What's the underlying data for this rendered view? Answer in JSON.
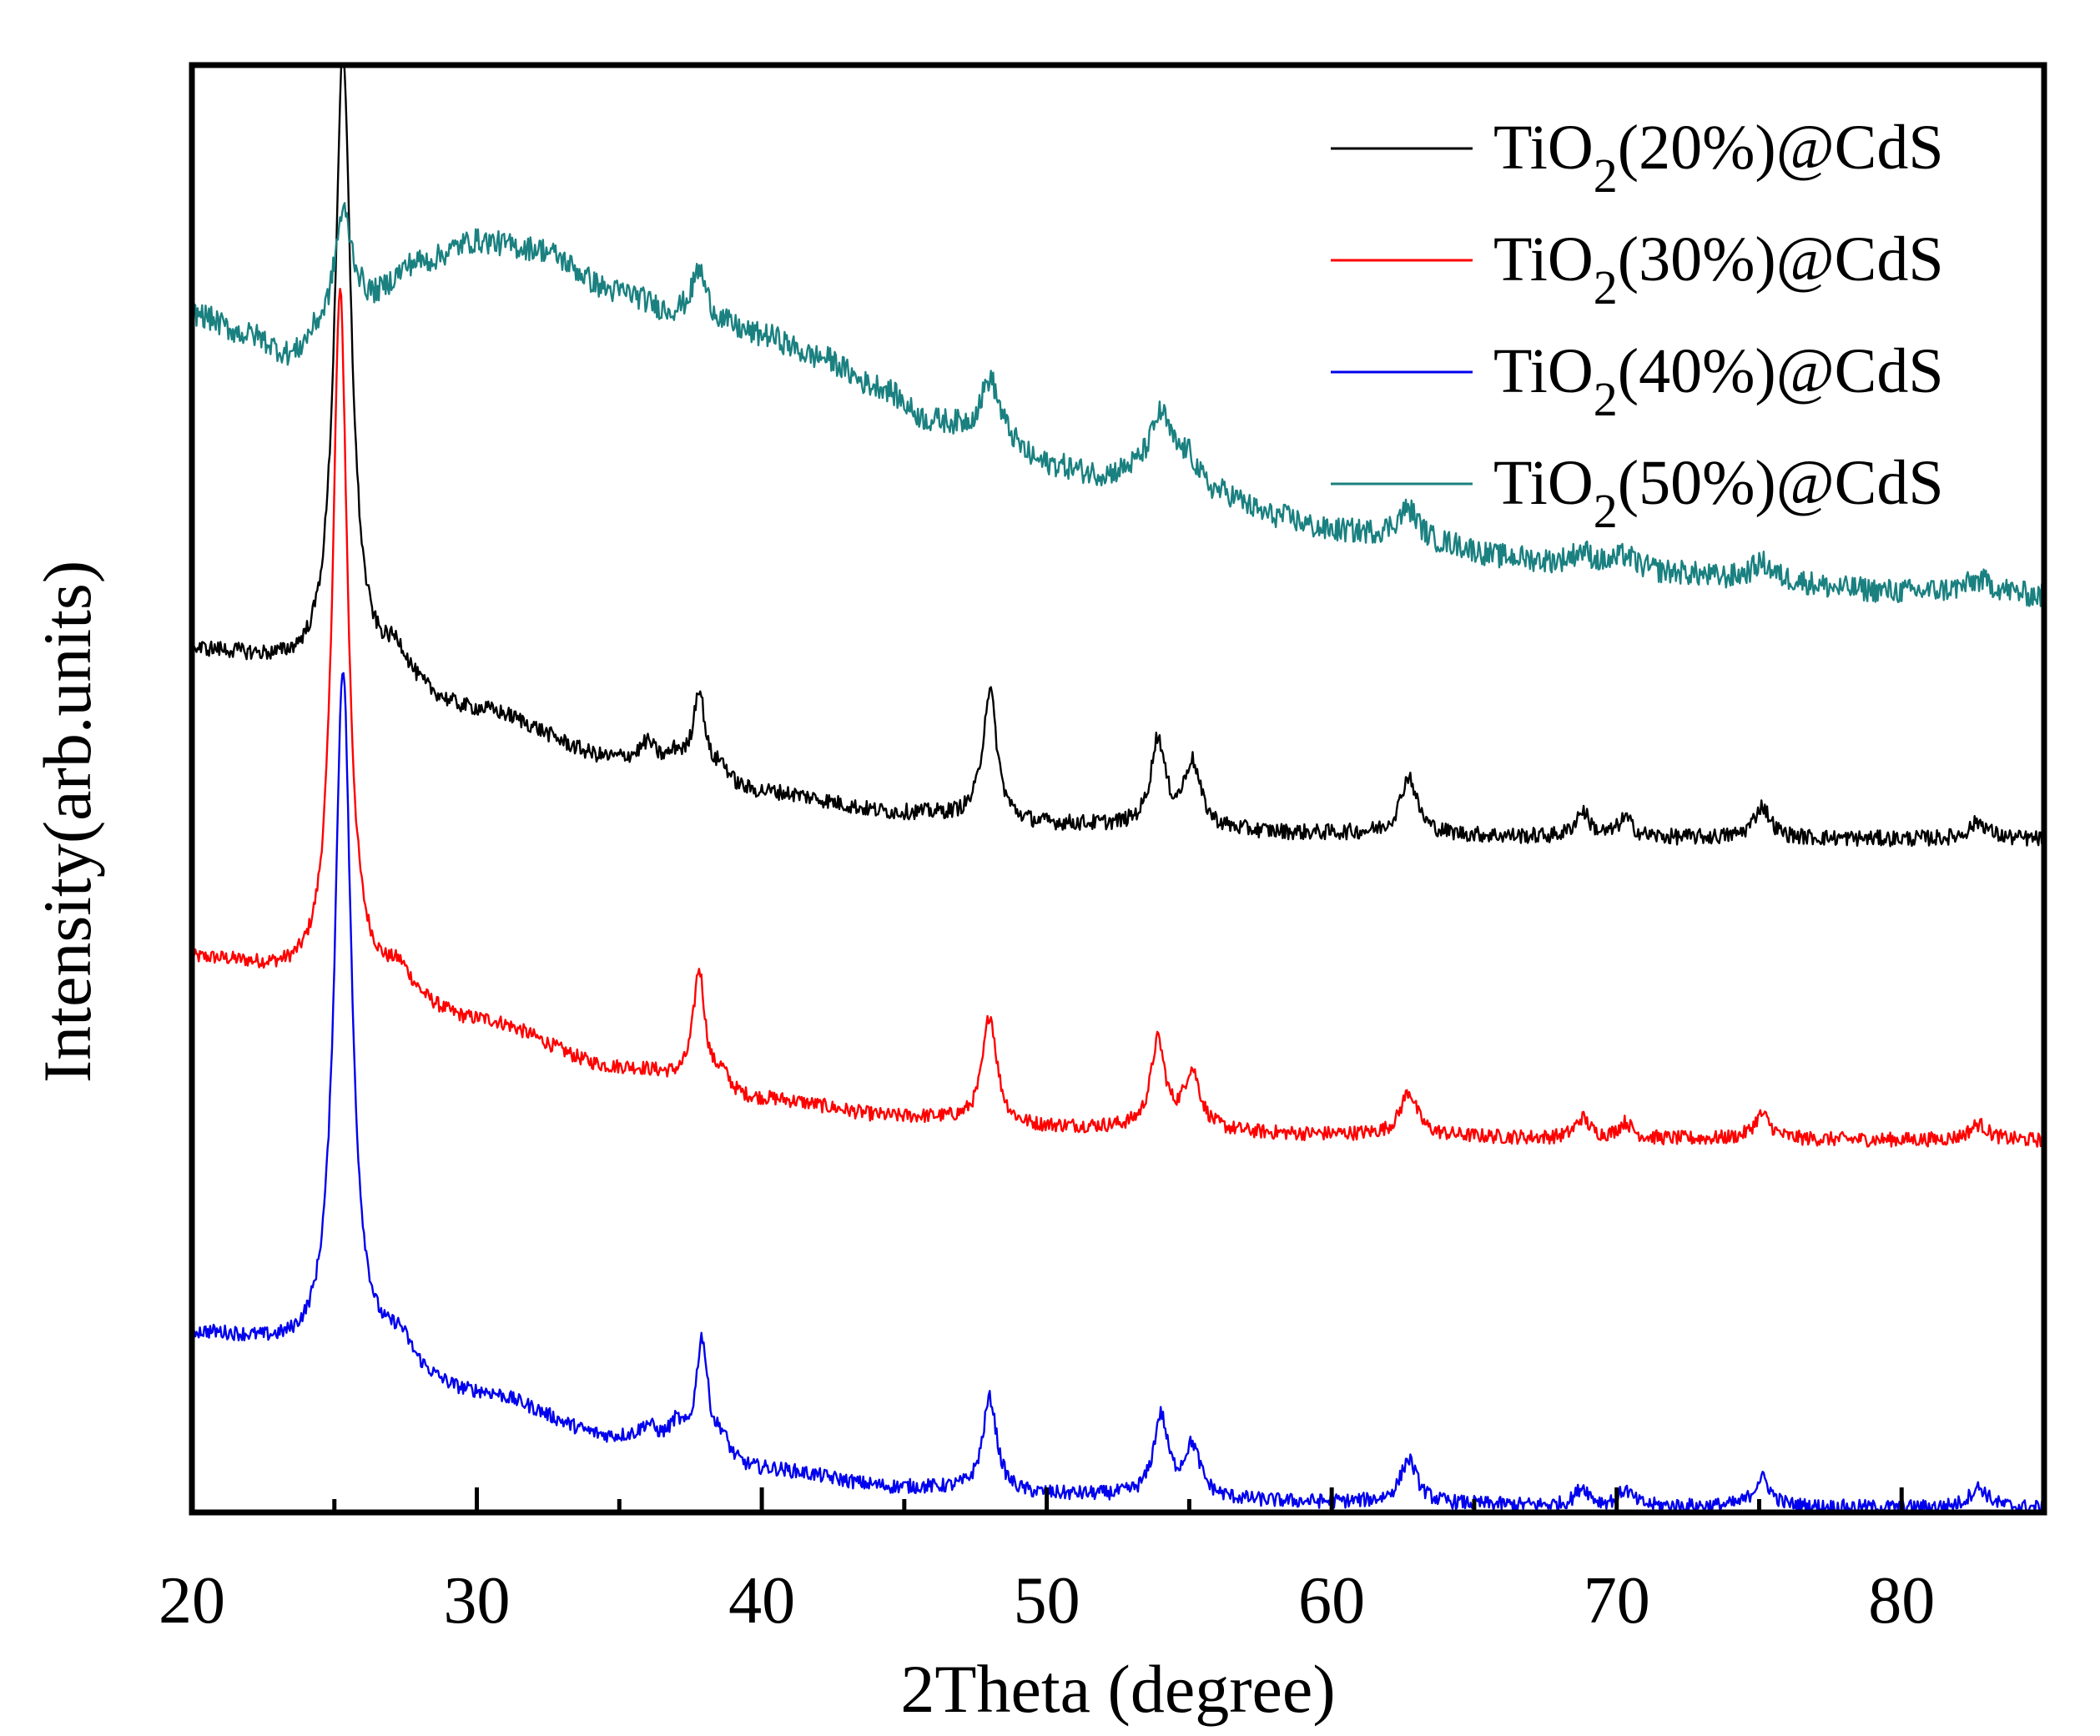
{
  "chart_data": {
    "type": "line",
    "title": "",
    "xlabel": "2Theta (degree)",
    "ylabel": "Intensity(arb.units)",
    "xlim": [
      20,
      85
    ],
    "ylim": [
      0,
      100
    ],
    "y_ticks_shown": false,
    "x_ticks": [
      20,
      30,
      40,
      50,
      60,
      70,
      80
    ],
    "x_tick_labels": [
      "20",
      "30",
      "40",
      "50",
      "60",
      "70",
      "80"
    ],
    "legend_position": "top-right",
    "series": [
      {
        "name": "TiO2(20%)@CdS",
        "legend": {
          "prefix": "TiO",
          "sub": "2",
          "suffix": "(20%)@CdS"
        },
        "color": "#000000",
        "offset": 46.5,
        "background": [
          [
            20,
            13.0
          ],
          [
            26,
            11.0
          ],
          [
            30,
            8.8
          ],
          [
            35,
            5.5
          ],
          [
            40,
            3.2
          ],
          [
            45,
            1.8
          ],
          [
            50,
            1.0
          ],
          [
            60,
            0.4
          ],
          [
            70,
            0.1
          ],
          [
            85,
            0
          ]
        ],
        "peaks": [
          [
            25.3,
            43.0,
            0.35
          ],
          [
            27.2,
            2.0,
            0.5
          ],
          [
            36.0,
            1.3,
            0.3
          ],
          [
            37.0,
            1.0,
            0.3
          ],
          [
            37.8,
            6.0,
            0.25
          ],
          [
            38.6,
            1.2,
            0.3
          ],
          [
            48.0,
            9.0,
            0.3
          ],
          [
            53.9,
            6.0,
            0.3
          ],
          [
            55.1,
            4.5,
            0.35
          ],
          [
            62.7,
            4.0,
            0.35
          ],
          [
            68.8,
            1.8,
            0.3
          ],
          [
            70.3,
            1.3,
            0.3
          ],
          [
            75.1,
            2.2,
            0.35
          ],
          [
            82.7,
            1.2,
            0.4
          ]
        ],
        "noise": 0.55
      },
      {
        "name": "TiO2(30%)@CdS",
        "legend": {
          "prefix": "TiO",
          "sub": "2",
          "suffix": "(30%)@CdS"
        },
        "color": "#ff0000",
        "offset": 25.7,
        "background": [
          [
            20,
            12.5
          ],
          [
            26,
            10.5
          ],
          [
            30,
            8.2
          ],
          [
            35,
            5.0
          ],
          [
            40,
            2.8
          ],
          [
            45,
            1.6
          ],
          [
            50,
            0.9
          ],
          [
            60,
            0.4
          ],
          [
            70,
            0.1
          ],
          [
            85,
            0
          ]
        ],
        "peaks": [
          [
            25.2,
            48.0,
            0.32
          ],
          [
            27.3,
            1.5,
            0.5
          ],
          [
            37.8,
            8.0,
            0.25
          ],
          [
            38.6,
            1.2,
            0.3
          ],
          [
            48.0,
            7.5,
            0.3
          ],
          [
            53.9,
            6.0,
            0.3
          ],
          [
            55.1,
            4.0,
            0.35
          ],
          [
            62.7,
            3.0,
            0.35
          ],
          [
            68.8,
            1.4,
            0.3
          ],
          [
            70.3,
            1.1,
            0.3
          ],
          [
            75.1,
            1.7,
            0.35
          ],
          [
            82.7,
            1.1,
            0.4
          ]
        ],
        "noise": 0.5
      },
      {
        "name": "TiO2(40%)@CdS",
        "legend": {
          "prefix": "TiO",
          "sub": "2",
          "suffix": "(40%)@CdS"
        },
        "color": "#0000ee",
        "offset": 0.3,
        "background": [
          [
            20,
            12.0
          ],
          [
            26,
            10.0
          ],
          [
            30,
            7.8
          ],
          [
            35,
            4.8
          ],
          [
            40,
            2.6
          ],
          [
            45,
            1.4
          ],
          [
            50,
            0.9
          ],
          [
            60,
            0.4
          ],
          [
            70,
            0.1
          ],
          [
            85,
            0
          ]
        ],
        "peaks": [
          [
            25.3,
            48.0,
            0.35
          ],
          [
            27.3,
            1.8,
            0.5
          ],
          [
            36.0,
            1.0,
            0.3
          ],
          [
            37.0,
            1.5,
            0.3
          ],
          [
            37.9,
            8.0,
            0.25
          ],
          [
            38.6,
            1.5,
            0.3
          ],
          [
            48.0,
            6.5,
            0.3
          ],
          [
            54.0,
            5.5,
            0.3
          ],
          [
            55.1,
            3.5,
            0.35
          ],
          [
            62.7,
            3.0,
            0.35
          ],
          [
            68.8,
            1.3,
            0.3
          ],
          [
            70.3,
            1.1,
            0.3
          ],
          [
            75.1,
            2.0,
            0.35
          ],
          [
            82.7,
            1.4,
            0.4
          ]
        ],
        "noise": 0.5
      },
      {
        "name": "TiO2(50%)@CdS",
        "legend": {
          "prefix": "TiO",
          "sub": "2",
          "suffix": "(50%)@CdS"
        },
        "color": "#1a8080",
        "offset": 63.3,
        "background": [
          [
            20,
            19.5
          ],
          [
            22,
            18.0
          ],
          [
            23.5,
            16.5
          ],
          [
            24.5,
            18.0
          ],
          [
            26,
            20.0
          ],
          [
            28,
            23.0
          ],
          [
            30,
            24.5
          ],
          [
            32,
            24.0
          ],
          [
            35,
            21.0
          ],
          [
            37,
            19.5
          ],
          [
            38,
            19.0
          ],
          [
            40,
            18.0
          ],
          [
            42,
            16.5
          ],
          [
            44,
            14.5
          ],
          [
            46,
            12.0
          ],
          [
            48,
            11.0
          ],
          [
            50,
            9.0
          ],
          [
            52,
            8.3
          ],
          [
            54,
            9.0
          ],
          [
            56,
            7.0
          ],
          [
            58,
            5.5
          ],
          [
            60,
            4.5
          ],
          [
            62,
            4.2
          ],
          [
            64,
            3.5
          ],
          [
            66,
            2.7
          ],
          [
            68,
            2.3
          ],
          [
            70,
            2.0
          ],
          [
            72,
            1.6
          ],
          [
            74,
            1.2
          ],
          [
            76,
            1.0
          ],
          [
            78,
            0.5
          ],
          [
            80,
            0.3
          ],
          [
            83,
            0.4
          ],
          [
            85,
            0
          ]
        ],
        "peaks": [
          [
            25.3,
            7.5,
            0.38
          ],
          [
            37.8,
            3.5,
            0.3
          ],
          [
            48.0,
            4.0,
            0.4
          ],
          [
            54.0,
            3.5,
            0.4
          ],
          [
            55.0,
            1.5,
            0.4
          ],
          [
            62.7,
            2.0,
            0.45
          ],
          [
            68.8,
            0.9,
            0.4
          ],
          [
            70.3,
            0.8,
            0.4
          ],
          [
            75.1,
            1.2,
            0.45
          ],
          [
            82.7,
            0.7,
            0.5
          ]
        ],
        "noise": 0.85
      }
    ]
  }
}
